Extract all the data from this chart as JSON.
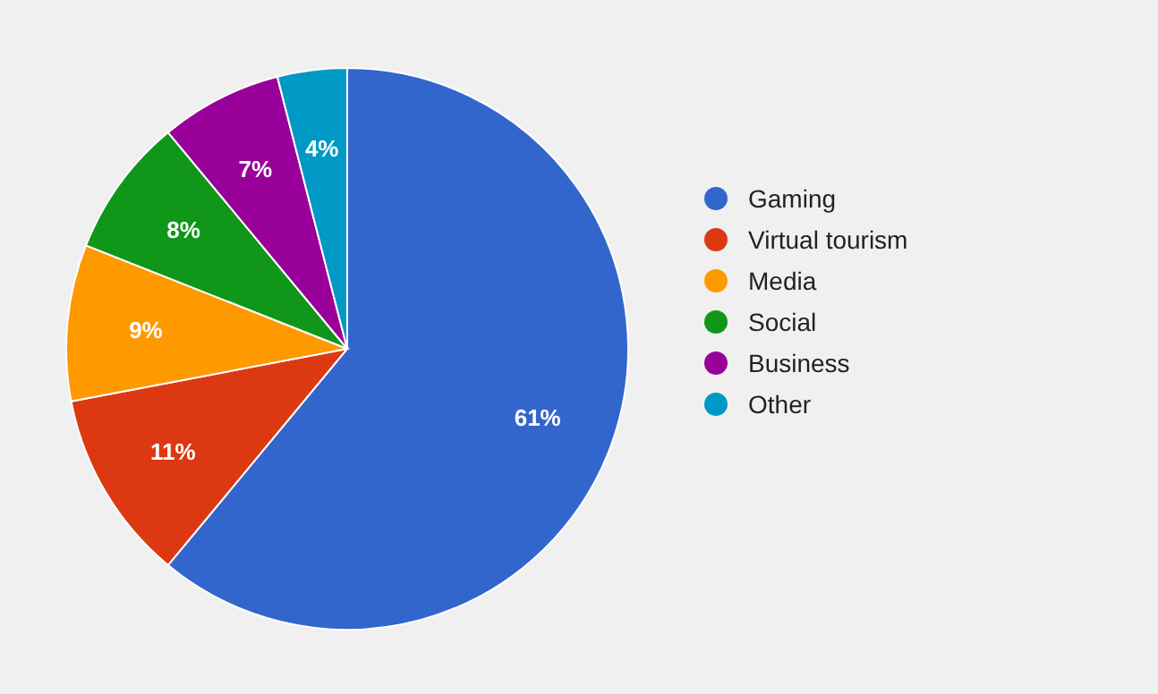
{
  "chart_data": {
    "type": "pie",
    "categories": [
      "Gaming",
      "Virtual tourism",
      "Media",
      "Social",
      "Business",
      "Other"
    ],
    "values": [
      61,
      11,
      9,
      8,
      7,
      4
    ],
    "colors": [
      "#3366cc",
      "#dc3912",
      "#ff9900",
      "#109618",
      "#990099",
      "#0099c6"
    ],
    "value_labels": [
      "61%",
      "11%",
      "9%",
      "8%",
      "7%",
      "4%"
    ],
    "legend": "right"
  }
}
